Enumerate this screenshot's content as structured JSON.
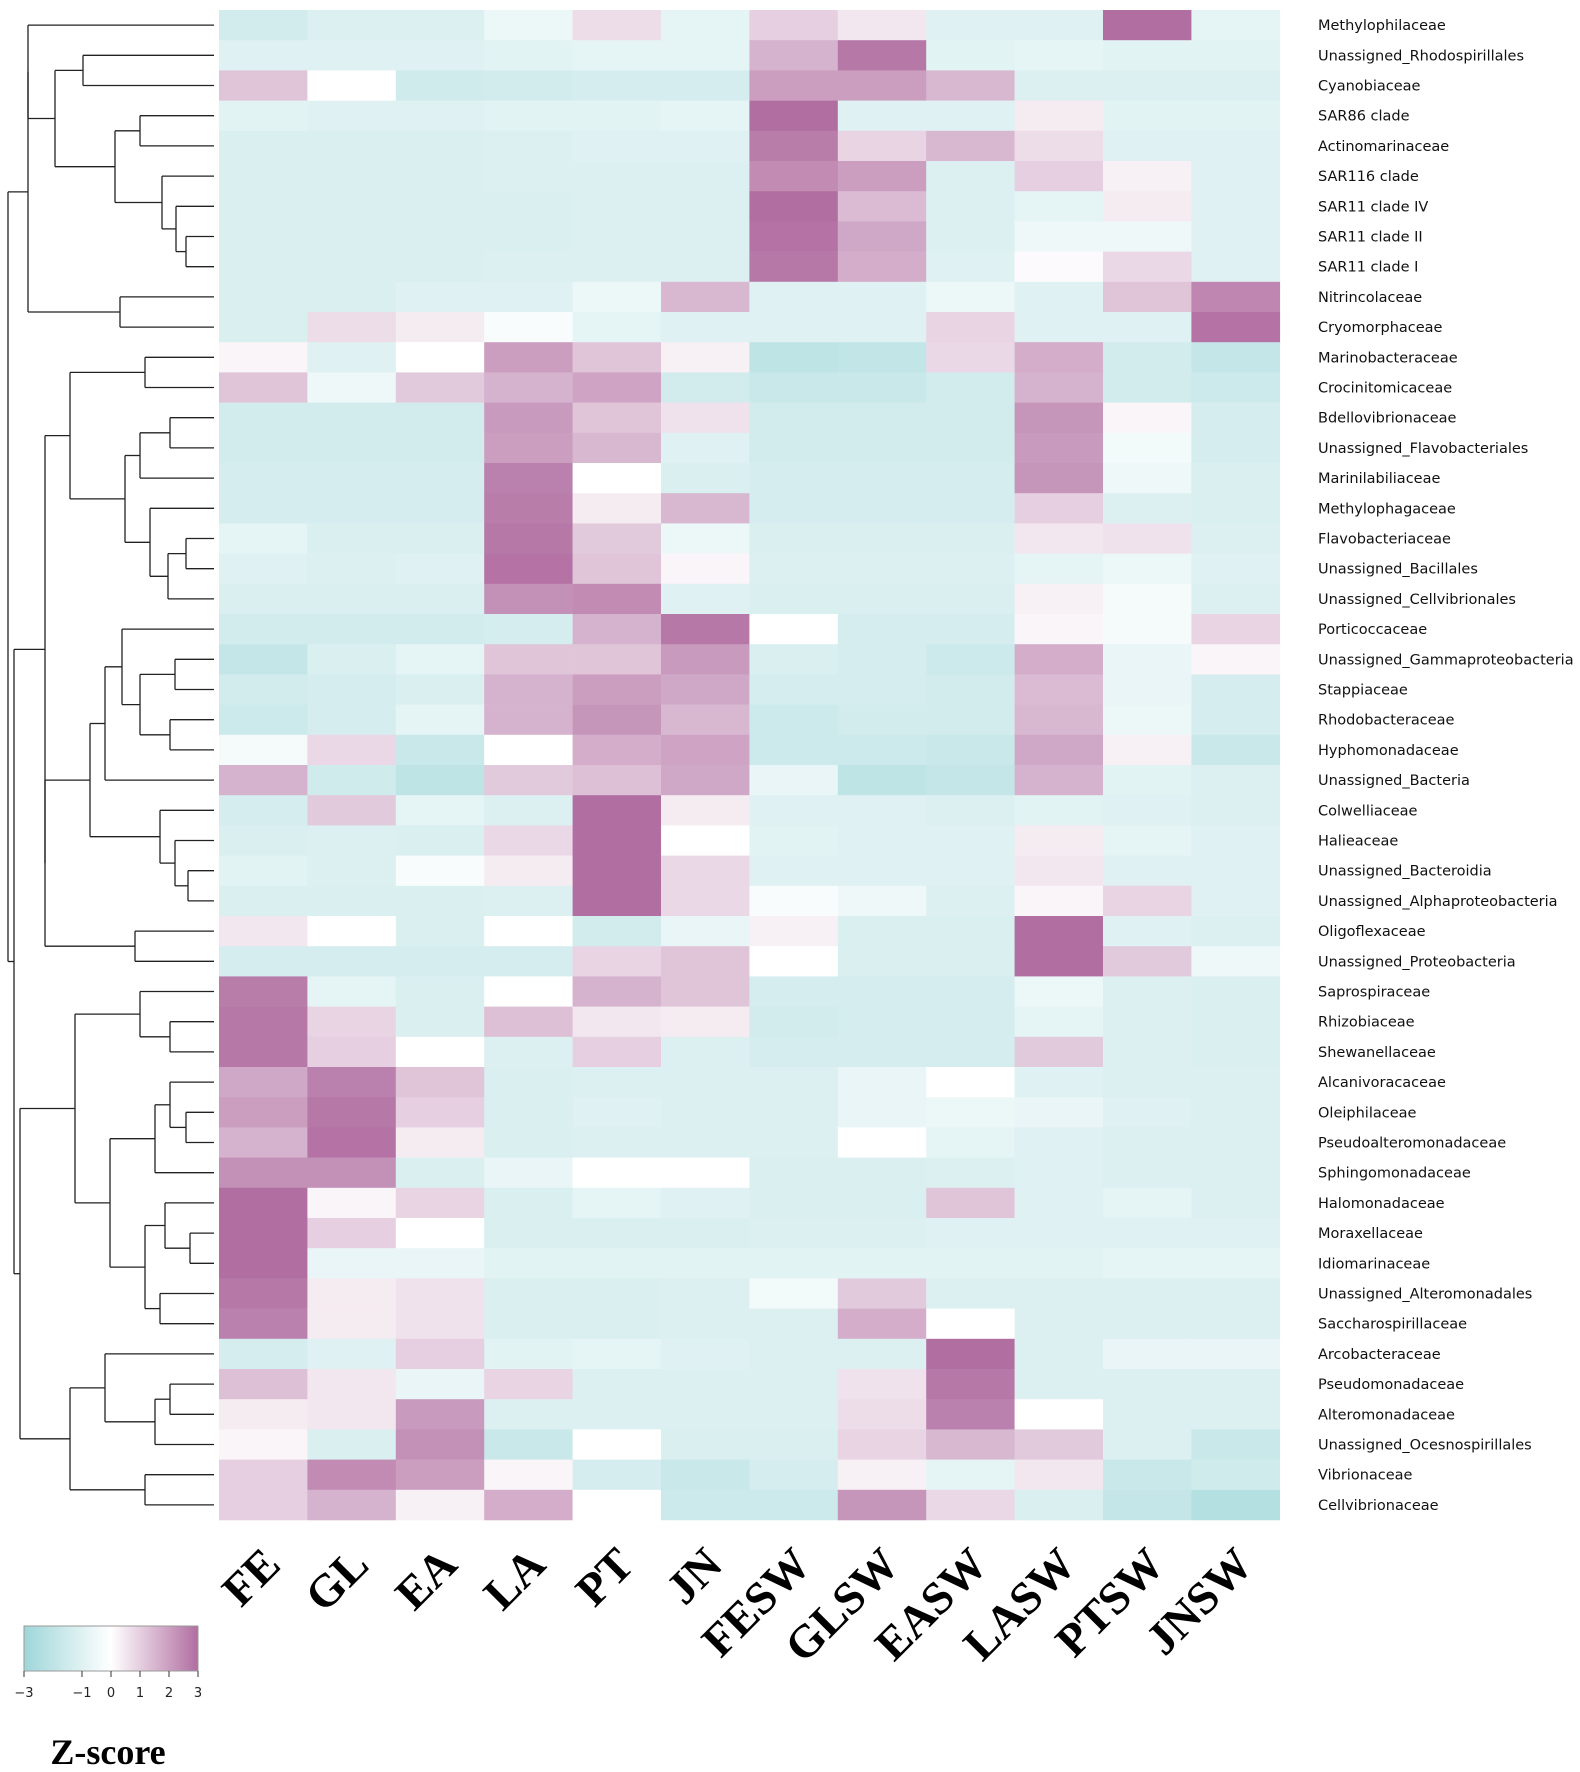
{
  "chart_data": {
    "type": "heatmap",
    "title": "",
    "columns": [
      "FE",
      "GL",
      "EA",
      "LA",
      "PT",
      "JN",
      "FESW",
      "GLSW",
      "EASW",
      "LASW",
      "PTSW",
      "JNSW"
    ],
    "rows": [
      "Methylophilaceae",
      "Unassigned_Rhodospirillales",
      "Cyanobiaceae",
      "SAR86 clade",
      "Actinomarinaceae",
      "SAR116 clade",
      "SAR11 clade IV",
      "SAR11 clade II",
      "SAR11 clade I",
      "Nitrincolaceae",
      "Cryomorphaceae",
      "Marinobacteraceae",
      "Crocinitomicaceae",
      "Bdellovibrionaceae",
      "Unassigned_Flavobacteriales",
      "Marinilabiliaceae",
      "Methylophagaceae",
      "Flavobacteriaceae",
      "Unassigned_Bacillales",
      "Unassigned_Cellvibrionales",
      "Porticoccaceae",
      "Unassigned_Gammaproteobacteria",
      "Stappiaceae",
      "Rhodobacteraceae",
      "Hyphomonadaceae",
      "Unassigned_Bacteria",
      "Colwelliaceae",
      "Halieaceae",
      "Unassigned_Bacteroidia",
      "Unassigned_Alphaproteobacteria",
      "Oligoflexaceae",
      "Unassigned_Proteobacteria",
      "Saprospiraceae",
      "Rhizobiaceae",
      "Shewanellaceae",
      "Alcanivoracaceae",
      "Oleiphilaceae",
      "Pseudoalteromonadaceae",
      "Sphingomonadaceae",
      "Halomonadaceae",
      "Moraxellaceae",
      "Idiomarinaceae",
      "Unassigned_Alteromonadales",
      "Saccharospirillaceae",
      "Arcobacteraceae",
      "Pseudomonadaceae",
      "Alteromonadaceae",
      "Unassigned_Ocesnospirillales",
      "Vibrionaceae",
      "Cellvibrionaceae"
    ],
    "values": [
      [
        -1.4,
        -1.1,
        -1.1,
        -0.6,
        0.7,
        -0.8,
        1.0,
        0.5,
        -1.0,
        -1.0,
        3.0,
        -0.8
      ],
      [
        -1.0,
        -1.0,
        -1.0,
        -0.9,
        -0.8,
        -0.8,
        1.6,
        2.8,
        -0.9,
        -0.8,
        -0.9,
        -0.9
      ],
      [
        1.2,
        0.0,
        -1.5,
        -1.4,
        -1.3,
        -1.3,
        2.0,
        2.0,
        1.5,
        -1.1,
        -1.1,
        -1.1
      ],
      [
        -0.9,
        -1.0,
        -1.0,
        -0.9,
        -0.9,
        -0.8,
        3.0,
        -1.0,
        -1.0,
        0.4,
        -0.9,
        -0.9
      ],
      [
        -1.2,
        -1.2,
        -1.2,
        -1.1,
        -1.0,
        -1.0,
        2.7,
        0.9,
        1.5,
        0.7,
        -1.0,
        -1.0
      ],
      [
        -1.2,
        -1.2,
        -1.2,
        -1.1,
        -1.1,
        -1.1,
        2.4,
        2.0,
        -1.1,
        1.0,
        0.3,
        -1.0
      ],
      [
        -1.2,
        -1.2,
        -1.2,
        -1.2,
        -1.1,
        -1.1,
        3.0,
        1.4,
        -1.1,
        -0.8,
        0.4,
        -1.0
      ],
      [
        -1.2,
        -1.2,
        -1.2,
        -1.2,
        -1.1,
        -1.1,
        2.9,
        1.8,
        -1.1,
        -0.5,
        -0.5,
        -1.0
      ],
      [
        -1.2,
        -1.2,
        -1.2,
        -1.1,
        -1.1,
        -1.1,
        2.8,
        1.7,
        -1.0,
        0.1,
        0.8,
        -1.0
      ],
      [
        -1.2,
        -1.2,
        -1.0,
        -1.0,
        -0.6,
        1.5,
        -1.0,
        -1.0,
        -0.6,
        -1.0,
        1.2,
        2.5
      ],
      [
        -1.2,
        0.7,
        0.4,
        -0.2,
        -0.8,
        -1.0,
        -1.0,
        -1.0,
        0.9,
        -1.0,
        -1.0,
        2.9
      ],
      [
        0.2,
        -1.0,
        0.0,
        2.0,
        1.2,
        0.3,
        -2.0,
        -1.9,
        0.8,
        1.7,
        -1.4,
        -1.8
      ],
      [
        1.2,
        -0.5,
        1.1,
        1.6,
        1.9,
        -1.4,
        -1.7,
        -1.7,
        -1.4,
        1.6,
        -1.4,
        -1.6
      ],
      [
        -1.4,
        -1.4,
        -1.4,
        2.1,
        1.2,
        0.6,
        -1.4,
        -1.4,
        -1.4,
        2.2,
        0.2,
        -1.3
      ],
      [
        -1.4,
        -1.4,
        -1.4,
        2.0,
        1.5,
        -1.0,
        -1.4,
        -1.4,
        -1.4,
        2.1,
        -0.4,
        -1.3
      ],
      [
        -1.3,
        -1.3,
        -1.3,
        2.6,
        0.0,
        -1.2,
        -1.3,
        -1.3,
        -1.3,
        2.2,
        -0.5,
        -1.2
      ],
      [
        -1.3,
        -1.3,
        -1.3,
        2.7,
        0.4,
        1.5,
        -1.3,
        -1.3,
        -1.3,
        1.0,
        -1.1,
        -1.2
      ],
      [
        -0.8,
        -1.2,
        -1.2,
        2.8,
        1.1,
        -0.6,
        -1.2,
        -1.2,
        -1.2,
        0.5,
        0.6,
        -1.1
      ],
      [
        -1.0,
        -1.1,
        -1.0,
        2.9,
        1.2,
        0.2,
        -1.1,
        -1.1,
        -1.1,
        -0.8,
        -0.6,
        -1.0
      ],
      [
        -1.2,
        -1.2,
        -1.2,
        2.3,
        2.4,
        -1.0,
        -1.2,
        -1.2,
        -1.2,
        0.3,
        -0.3,
        -1.1
      ],
      [
        -1.4,
        -1.4,
        -1.4,
        -1.3,
        1.6,
        2.8,
        0.0,
        -1.3,
        -1.3,
        0.2,
        -0.3,
        0.9
      ],
      [
        -1.8,
        -1.2,
        -0.8,
        1.2,
        1.2,
        2.1,
        -1.2,
        -1.3,
        -1.6,
        1.7,
        -0.7,
        0.2
      ],
      [
        -1.4,
        -1.3,
        -1.2,
        1.6,
        2.0,
        1.8,
        -1.3,
        -1.3,
        -1.4,
        1.4,
        -0.7,
        -1.3
      ],
      [
        -1.6,
        -1.3,
        -0.8,
        1.6,
        2.2,
        1.5,
        -1.6,
        -1.4,
        -1.4,
        1.5,
        -0.6,
        -1.3
      ],
      [
        -0.3,
        0.8,
        -1.7,
        0.0,
        1.7,
        1.9,
        -1.6,
        -1.6,
        -1.7,
        1.8,
        0.3,
        -1.7
      ],
      [
        1.6,
        -1.5,
        -2.0,
        1.1,
        1.3,
        1.8,
        -0.7,
        -2.0,
        -1.8,
        1.6,
        -0.9,
        -1.1
      ],
      [
        -1.3,
        1.1,
        -0.8,
        -1.1,
        3.0,
        0.4,
        -1.0,
        -1.0,
        -1.1,
        -0.9,
        -1.0,
        -1.1
      ],
      [
        -1.2,
        -1.1,
        -1.2,
        0.8,
        3.0,
        0.0,
        -0.9,
        -1.0,
        -1.0,
        0.4,
        -0.8,
        -1.0
      ],
      [
        -0.9,
        -1.1,
        -0.2,
        0.4,
        3.0,
        0.8,
        -1.0,
        -1.0,
        -1.0,
        0.5,
        -1.0,
        -1.0
      ],
      [
        -1.2,
        -1.2,
        -1.2,
        -1.1,
        3.0,
        0.8,
        -0.2,
        -0.5,
        -1.1,
        0.2,
        0.9,
        -1.0
      ],
      [
        0.5,
        0.0,
        -1.2,
        0.0,
        -1.4,
        -0.7,
        0.3,
        -1.2,
        -1.2,
        3.0,
        -1.0,
        -1.1
      ],
      [
        -1.3,
        -1.3,
        -1.3,
        -1.3,
        0.9,
        1.2,
        0.0,
        -1.2,
        -1.2,
        3.0,
        1.1,
        -0.5
      ],
      [
        2.7,
        -0.8,
        -1.2,
        0.0,
        1.6,
        1.2,
        -1.3,
        -1.3,
        -1.3,
        -0.6,
        -1.1,
        -1.2
      ],
      [
        2.8,
        0.9,
        -1.2,
        1.3,
        0.5,
        0.4,
        -1.4,
        -1.3,
        -1.3,
        -0.8,
        -1.1,
        -1.2
      ],
      [
        2.8,
        1.0,
        0.0,
        -1.1,
        1.0,
        -1.1,
        -1.3,
        -1.3,
        -1.3,
        1.1,
        -1.1,
        -1.2
      ],
      [
        1.8,
        2.6,
        1.2,
        -1.2,
        -1.1,
        -1.1,
        -1.1,
        -0.7,
        0.0,
        -1.0,
        -1.1,
        -1.1
      ],
      [
        2.0,
        2.8,
        1.0,
        -1.2,
        -1.0,
        -1.1,
        -1.1,
        -0.7,
        -0.6,
        -0.7,
        -1.0,
        -1.1
      ],
      [
        1.6,
        2.9,
        0.4,
        -1.2,
        -1.1,
        -1.1,
        -1.1,
        0.0,
        -0.8,
        -1.0,
        -1.1,
        -1.1
      ],
      [
        2.3,
        2.3,
        -1.2,
        -0.7,
        0.0,
        0.0,
        -1.2,
        -1.2,
        -1.1,
        -1.0,
        -1.1,
        -1.1
      ],
      [
        3.0,
        0.2,
        0.9,
        -1.2,
        -0.8,
        -1.0,
        -1.2,
        -1.2,
        1.2,
        -1.0,
        -0.8,
        -1.1
      ],
      [
        3.0,
        1.0,
        0.0,
        -1.2,
        -1.2,
        -1.2,
        -1.1,
        -1.1,
        -1.0,
        -1.0,
        -1.0,
        -1.0
      ],
      [
        3.0,
        -0.7,
        -0.7,
        -0.9,
        -0.9,
        -0.9,
        -0.9,
        -0.9,
        -0.9,
        -0.9,
        -0.8,
        -0.8
      ],
      [
        2.8,
        0.4,
        0.6,
        -1.2,
        -1.2,
        -1.1,
        -0.4,
        1.1,
        -1.1,
        -1.1,
        -1.1,
        -1.1
      ],
      [
        2.6,
        0.4,
        0.6,
        -1.2,
        -1.2,
        -1.1,
        -1.1,
        1.7,
        0.0,
        -1.1,
        -1.1,
        -1.1
      ],
      [
        -1.3,
        -1.0,
        1.0,
        -0.9,
        -0.8,
        -1.0,
        -1.1,
        -1.1,
        3.0,
        -1.1,
        -0.7,
        -0.7
      ],
      [
        1.3,
        0.5,
        -0.7,
        0.9,
        -1.1,
        -1.1,
        -1.1,
        0.6,
        2.8,
        -1.1,
        -1.1,
        -1.1
      ],
      [
        0.4,
        0.5,
        2.1,
        -1.1,
        -1.1,
        -1.1,
        -1.1,
        0.7,
        2.6,
        0.0,
        -1.1,
        -1.1
      ],
      [
        0.2,
        -1.2,
        2.3,
        -1.7,
        0.0,
        -1.2,
        -1.2,
        0.9,
        1.5,
        1.1,
        -1.1,
        -1.7
      ],
      [
        1.0,
        2.4,
        2.0,
        0.2,
        -1.3,
        -1.7,
        -1.3,
        0.3,
        -0.8,
        0.5,
        -1.7,
        -1.5
      ],
      [
        1.0,
        1.6,
        0.3,
        1.7,
        0.0,
        -1.6,
        -1.6,
        2.2,
        0.8,
        -1.2,
        -1.8,
        -2.3
      ]
    ],
    "legend": {
      "title": "Z-score",
      "ticks": [
        "−3",
        "−1",
        "0",
        "1",
        "2",
        "3"
      ],
      "tick_values": [
        -3,
        -1,
        0,
        1,
        2,
        3
      ],
      "range": [
        -3,
        3
      ],
      "low_color": "#9fd6d9",
      "mid_color": "#ffffff",
      "high_color": "#b16ea1"
    },
    "dendrogram": "rows"
  }
}
